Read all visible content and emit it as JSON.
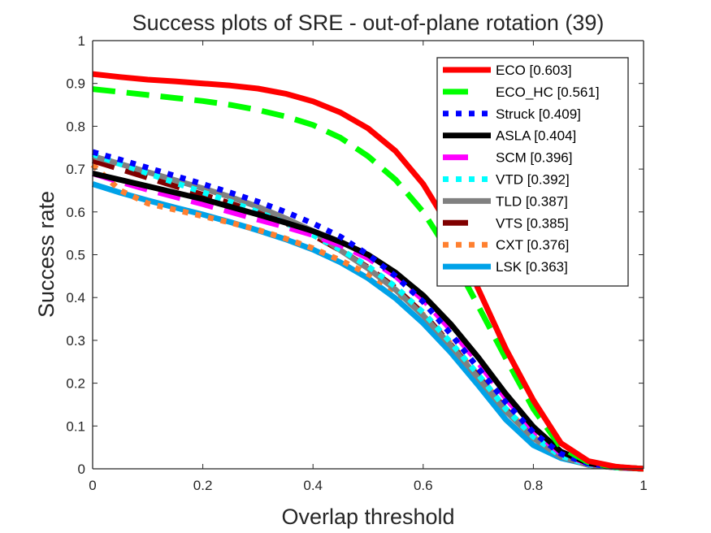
{
  "chart_data": {
    "type": "line",
    "title": "Success plots of SRE - out-of-plane rotation (39)",
    "xlabel": "Overlap threshold",
    "ylabel": "Success rate",
    "xlim": [
      0,
      1
    ],
    "ylim": [
      0,
      1
    ],
    "xticks": [
      0,
      0.2,
      0.4,
      0.6,
      0.8,
      1
    ],
    "xtick_labels": [
      "0",
      "0.2",
      "0.4",
      "0.6",
      "0.8",
      "1"
    ],
    "yticks": [
      0,
      0.1,
      0.2,
      0.3,
      0.4,
      0.5,
      0.6,
      0.7,
      0.8,
      0.9,
      1
    ],
    "ytick_labels": [
      "0",
      "0.1",
      "0.2",
      "0.3",
      "0.4",
      "0.5",
      "0.6",
      "0.7",
      "0.8",
      "0.9",
      "1"
    ],
    "grid": false,
    "legend_position": "top-right",
    "x": [
      0,
      0.05,
      0.1,
      0.15,
      0.2,
      0.25,
      0.3,
      0.35,
      0.4,
      0.45,
      0.5,
      0.55,
      0.6,
      0.65,
      0.7,
      0.75,
      0.8,
      0.85,
      0.9,
      0.95,
      1
    ],
    "series": [
      {
        "name": "ECO",
        "legend": "ECO [0.603]",
        "score": 0.603,
        "color": "#ff0000",
        "style": "solid",
        "values": [
          0.922,
          0.915,
          0.909,
          0.905,
          0.9,
          0.895,
          0.888,
          0.876,
          0.858,
          0.832,
          0.795,
          0.742,
          0.665,
          0.56,
          0.42,
          0.28,
          0.16,
          0.06,
          0.018,
          0.005,
          0.0
        ]
      },
      {
        "name": "ECO_HC",
        "legend": "ECO_HC [0.561]",
        "score": 0.561,
        "color": "#00ff00",
        "style": "dashed",
        "values": [
          0.887,
          0.88,
          0.873,
          0.866,
          0.859,
          0.85,
          0.838,
          0.823,
          0.803,
          0.773,
          0.73,
          0.675,
          0.6,
          0.5,
          0.38,
          0.258,
          0.14,
          0.05,
          0.015,
          0.004,
          0.0
        ]
      },
      {
        "name": "Struck",
        "legend": "Struck [0.409]",
        "score": 0.409,
        "color": "#0000ff",
        "style": "dotted",
        "values": [
          0.74,
          0.722,
          0.703,
          0.684,
          0.665,
          0.645,
          0.624,
          0.6,
          0.573,
          0.542,
          0.5,
          0.45,
          0.39,
          0.315,
          0.235,
          0.155,
          0.085,
          0.035,
          0.012,
          0.004,
          0.0
        ]
      },
      {
        "name": "ASLA",
        "legend": "ASLA [0.404]",
        "score": 0.404,
        "color": "#000000",
        "style": "solid",
        "values": [
          0.69,
          0.675,
          0.66,
          0.645,
          0.63,
          0.612,
          0.594,
          0.575,
          0.555,
          0.53,
          0.5,
          0.458,
          0.405,
          0.338,
          0.26,
          0.175,
          0.098,
          0.04,
          0.013,
          0.004,
          0.0
        ]
      },
      {
        "name": "SCM",
        "legend": "SCM [0.396]",
        "score": 0.396,
        "color": "#ff00ff",
        "style": "dashed",
        "values": [
          0.69,
          0.67,
          0.652,
          0.635,
          0.618,
          0.6,
          0.582,
          0.565,
          0.546,
          0.522,
          0.492,
          0.45,
          0.395,
          0.325,
          0.248,
          0.165,
          0.09,
          0.036,
          0.012,
          0.004,
          0.0
        ]
      },
      {
        "name": "VTD",
        "legend": "VTD [0.392]",
        "score": 0.392,
        "color": "#00ffff",
        "style": "dotted",
        "values": [
          0.735,
          0.712,
          0.69,
          0.668,
          0.646,
          0.624,
          0.6,
          0.574,
          0.546,
          0.512,
          0.473,
          0.425,
          0.365,
          0.295,
          0.22,
          0.14,
          0.075,
          0.03,
          0.01,
          0.003,
          0.0
        ]
      },
      {
        "name": "TLD",
        "legend": "TLD [0.387]",
        "score": 0.387,
        "color": "#808080",
        "style": "solid",
        "values": [
          0.73,
          0.712,
          0.693,
          0.674,
          0.655,
          0.635,
          0.612,
          0.585,
          0.555,
          0.51,
          0.468,
          0.418,
          0.358,
          0.288,
          0.212,
          0.135,
          0.072,
          0.028,
          0.009,
          0.003,
          0.0
        ]
      },
      {
        "name": "VTS",
        "legend": "VTS [0.385]",
        "score": 0.385,
        "color": "#800000",
        "style": "dashed",
        "values": [
          0.72,
          0.7,
          0.68,
          0.66,
          0.64,
          0.62,
          0.598,
          0.574,
          0.546,
          0.51,
          0.47,
          0.422,
          0.362,
          0.29,
          0.215,
          0.138,
          0.073,
          0.029,
          0.009,
          0.003,
          0.0
        ]
      },
      {
        "name": "CXT",
        "legend": "CXT [0.376]",
        "score": 0.376,
        "color": "#ff8030",
        "style": "dotted",
        "values": [
          0.71,
          0.65,
          0.62,
          0.605,
          0.59,
          0.575,
          0.558,
          0.538,
          0.515,
          0.487,
          0.455,
          0.415,
          0.36,
          0.292,
          0.218,
          0.14,
          0.075,
          0.03,
          0.01,
          0.003,
          0.0
        ]
      },
      {
        "name": "LSK",
        "legend": "LSK [0.363]",
        "score": 0.363,
        "color": "#00a2e8",
        "style": "solid",
        "values": [
          0.665,
          0.645,
          0.627,
          0.61,
          0.594,
          0.576,
          0.557,
          0.536,
          0.512,
          0.482,
          0.445,
          0.398,
          0.34,
          0.272,
          0.195,
          0.115,
          0.055,
          0.025,
          0.01,
          0.004,
          0.0
        ]
      }
    ]
  }
}
